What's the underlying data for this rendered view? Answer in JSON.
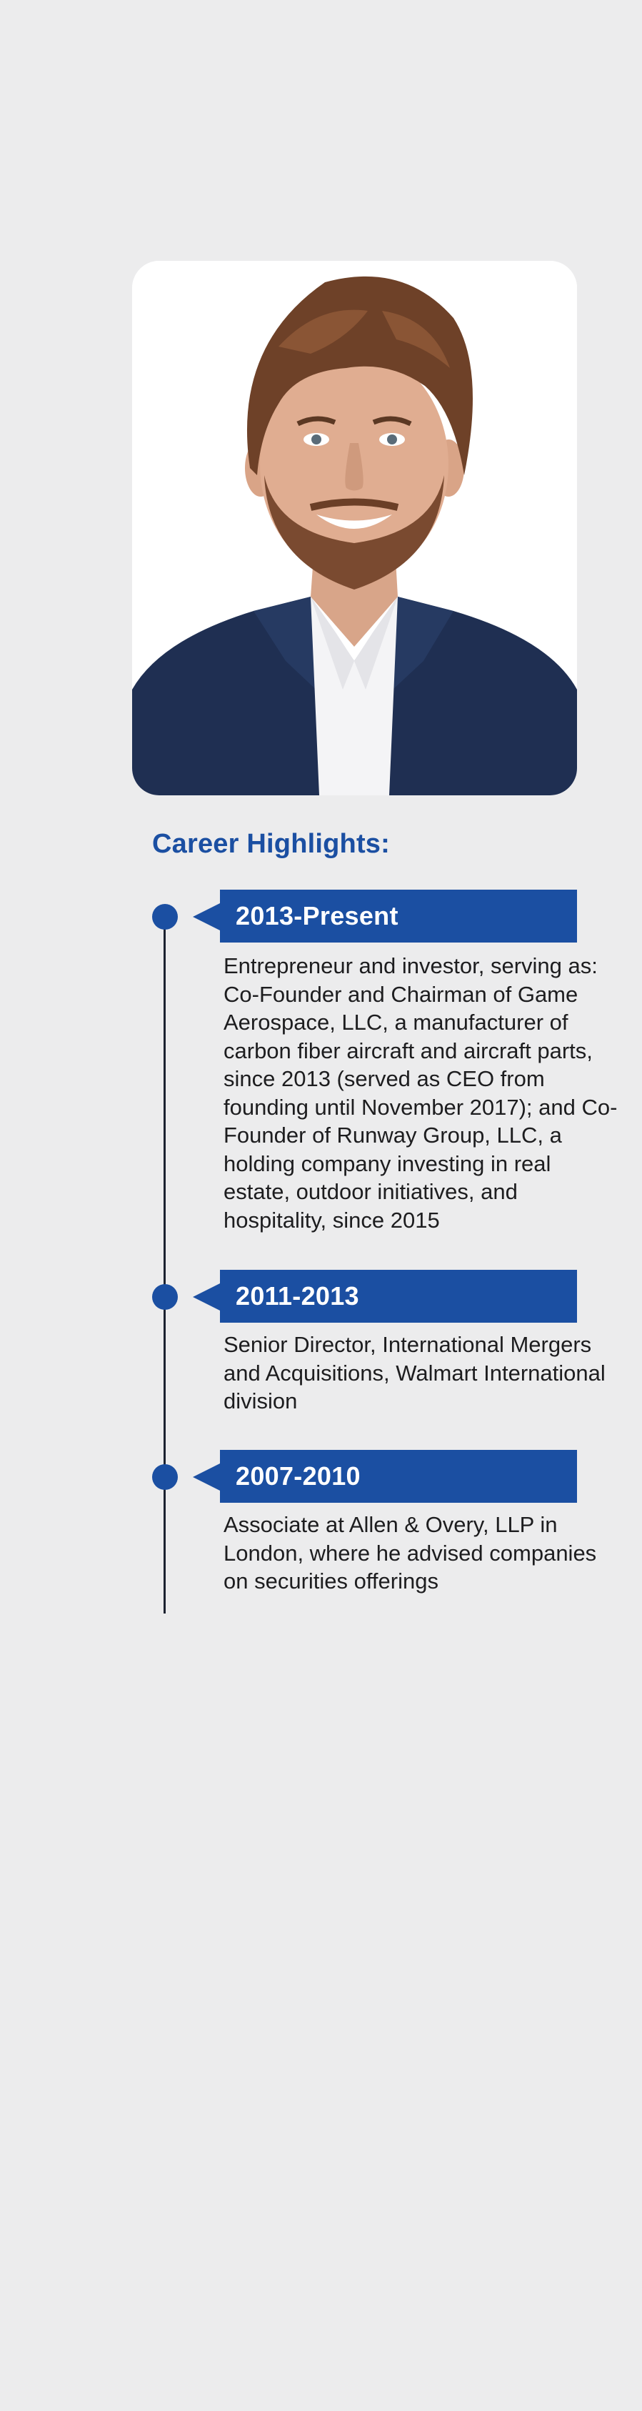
{
  "heading": "Career Highlights:",
  "entries": [
    {
      "period": "2013-Present",
      "description": "Entrepreneur and investor, serving as: Co-Founder and Chairman of Game Aerospace, LLC, a manufacturer of carbon fiber aircraft and aircraft parts, since 2013 (served as CEO from founding until November 2017); and Co-Founder of Runway Group, LLC, a holding company investing in real estate, outdoor initiatives, and hospitality, since 2015"
    },
    {
      "period": "2011-2013",
      "description": "Senior Director, International Mergers and Acquisitions, Walmart International division"
    },
    {
      "period": "2007-2010",
      "description": "Associate at Allen & Overy, LLP in London, where he advised companies on securities offerings"
    }
  ],
  "colors": {
    "accent": "#1b4fa2",
    "background": "#ececed",
    "text": "#1d1d1f",
    "timeline": "#1c2230"
  }
}
